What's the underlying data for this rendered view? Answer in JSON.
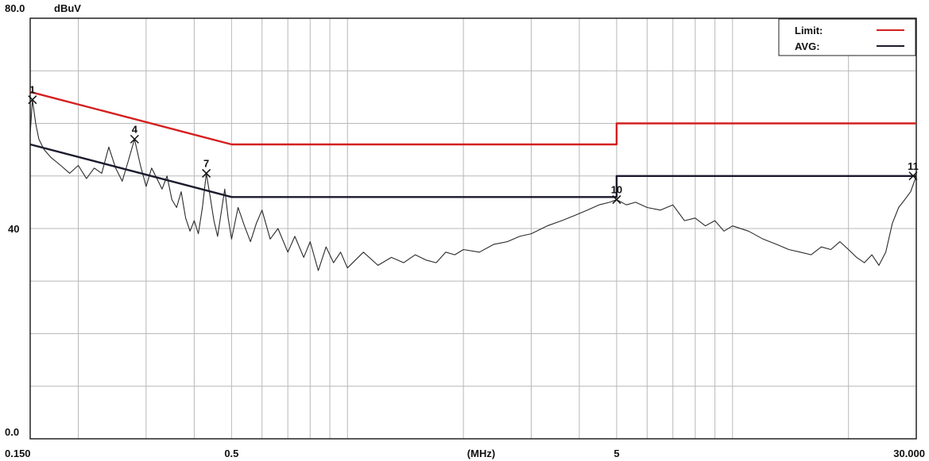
{
  "chart_data": {
    "type": "line",
    "y_axis": {
      "top_label": "80.0",
      "unit": "dBuV",
      "mid_label": "40",
      "bottom_label": "0.0",
      "ylim": [
        0,
        80
      ],
      "grid_step": 10
    },
    "x_axis": {
      "scale": "log",
      "xlim": [
        0.15,
        30
      ],
      "unit_label": "(MHz)",
      "tick_labels": [
        {
          "value": 0.15,
          "text": "0.150"
        },
        {
          "value": 0.5,
          "text": "0.5"
        },
        {
          "value": 5,
          "text": "5"
        },
        {
          "value": 30,
          "text": "30.000"
        }
      ]
    },
    "grid": true,
    "legend": {
      "position": "top-right",
      "entries": [
        {
          "label": "Limit:",
          "color": "#d42020"
        },
        {
          "label": "AVG:",
          "color": "#1a1a2e"
        }
      ]
    },
    "series": [
      {
        "name": "Limit:",
        "color": "#d42020",
        "points": [
          [
            0.15,
            66
          ],
          [
            0.5,
            56
          ],
          [
            5,
            56
          ],
          [
            5,
            60
          ],
          [
            30,
            60
          ]
        ]
      },
      {
        "name": "AVG:",
        "color": "#1a1a2e",
        "points": [
          [
            0.15,
            56
          ],
          [
            0.5,
            46
          ],
          [
            5,
            46
          ],
          [
            5,
            50
          ],
          [
            30,
            50
          ]
        ]
      },
      {
        "name": "trace",
        "color": "#2a2a2a",
        "points": [
          [
            0.15,
            58.0
          ],
          [
            0.152,
            64.5
          ],
          [
            0.155,
            60.0
          ],
          [
            0.158,
            57.0
          ],
          [
            0.163,
            55.0
          ],
          [
            0.17,
            53.5
          ],
          [
            0.18,
            52.0
          ],
          [
            0.19,
            50.5
          ],
          [
            0.2,
            52.0
          ],
          [
            0.21,
            49.5
          ],
          [
            0.22,
            51.5
          ],
          [
            0.23,
            50.5
          ],
          [
            0.24,
            55.5
          ],
          [
            0.25,
            51.5
          ],
          [
            0.26,
            49.0
          ],
          [
            0.27,
            53.0
          ],
          [
            0.28,
            57.0
          ],
          [
            0.29,
            52.0
          ],
          [
            0.3,
            48.0
          ],
          [
            0.31,
            51.5
          ],
          [
            0.32,
            49.5
          ],
          [
            0.33,
            47.5
          ],
          [
            0.34,
            50.0
          ],
          [
            0.35,
            45.5
          ],
          [
            0.36,
            44.0
          ],
          [
            0.37,
            47.0
          ],
          [
            0.38,
            42.0
          ],
          [
            0.39,
            39.5
          ],
          [
            0.4,
            41.5
          ],
          [
            0.41,
            39.0
          ],
          [
            0.42,
            44.0
          ],
          [
            0.43,
            50.5
          ],
          [
            0.44,
            46.0
          ],
          [
            0.45,
            41.5
          ],
          [
            0.46,
            38.5
          ],
          [
            0.47,
            43.0
          ],
          [
            0.48,
            47.5
          ],
          [
            0.49,
            42.0
          ],
          [
            0.5,
            38.0
          ],
          [
            0.52,
            44.0
          ],
          [
            0.54,
            40.5
          ],
          [
            0.56,
            37.5
          ],
          [
            0.58,
            41.0
          ],
          [
            0.6,
            43.5
          ],
          [
            0.63,
            38.0
          ],
          [
            0.66,
            40.0
          ],
          [
            0.7,
            35.5
          ],
          [
            0.73,
            38.5
          ],
          [
            0.77,
            34.5
          ],
          [
            0.8,
            37.5
          ],
          [
            0.84,
            32.0
          ],
          [
            0.88,
            36.5
          ],
          [
            0.92,
            33.5
          ],
          [
            0.96,
            35.5
          ],
          [
            1.0,
            32.5
          ],
          [
            1.1,
            35.5
          ],
          [
            1.2,
            33.0
          ],
          [
            1.3,
            34.5
          ],
          [
            1.4,
            33.5
          ],
          [
            1.5,
            35.0
          ],
          [
            1.6,
            34.0
          ],
          [
            1.7,
            33.5
          ],
          [
            1.8,
            35.5
          ],
          [
            1.9,
            35.0
          ],
          [
            2.0,
            36.0
          ],
          [
            2.2,
            35.5
          ],
          [
            2.4,
            37.0
          ],
          [
            2.6,
            37.5
          ],
          [
            2.8,
            38.5
          ],
          [
            3.0,
            39.0
          ],
          [
            3.3,
            40.5
          ],
          [
            3.6,
            41.5
          ],
          [
            3.9,
            42.5
          ],
          [
            4.2,
            43.5
          ],
          [
            4.5,
            44.5
          ],
          [
            4.8,
            45.0
          ],
          [
            5.0,
            45.5
          ],
          [
            5.3,
            44.5
          ],
          [
            5.6,
            45.0
          ],
          [
            6.0,
            44.0
          ],
          [
            6.5,
            43.5
          ],
          [
            7.0,
            44.5
          ],
          [
            7.5,
            41.5
          ],
          [
            8.0,
            42.0
          ],
          [
            8.5,
            40.5
          ],
          [
            9.0,
            41.5
          ],
          [
            9.5,
            39.5
          ],
          [
            10.0,
            40.5
          ],
          [
            11.0,
            39.5
          ],
          [
            12.0,
            38.0
          ],
          [
            13.0,
            37.0
          ],
          [
            14.0,
            36.0
          ],
          [
            15.0,
            35.5
          ],
          [
            16.0,
            35.0
          ],
          [
            17.0,
            36.5
          ],
          [
            18.0,
            36.0
          ],
          [
            19.0,
            37.5
          ],
          [
            20.0,
            36.0
          ],
          [
            21.0,
            34.5
          ],
          [
            22.0,
            33.5
          ],
          [
            23.0,
            35.0
          ],
          [
            24.0,
            33.0
          ],
          [
            25.0,
            35.5
          ],
          [
            26.0,
            41.0
          ],
          [
            27.0,
            44.0
          ],
          [
            28.0,
            45.5
          ],
          [
            29.0,
            47.0
          ],
          [
            30.0,
            50.0
          ]
        ]
      }
    ],
    "markers": [
      {
        "label": "1",
        "x": 0.152,
        "y": 64.5
      },
      {
        "label": "4",
        "x": 0.28,
        "y": 57.0
      },
      {
        "label": "7",
        "x": 0.43,
        "y": 50.5
      },
      {
        "label": "10",
        "x": 5.0,
        "y": 45.5
      },
      {
        "label": "11",
        "x": 30.0,
        "y": 50.0
      }
    ]
  }
}
